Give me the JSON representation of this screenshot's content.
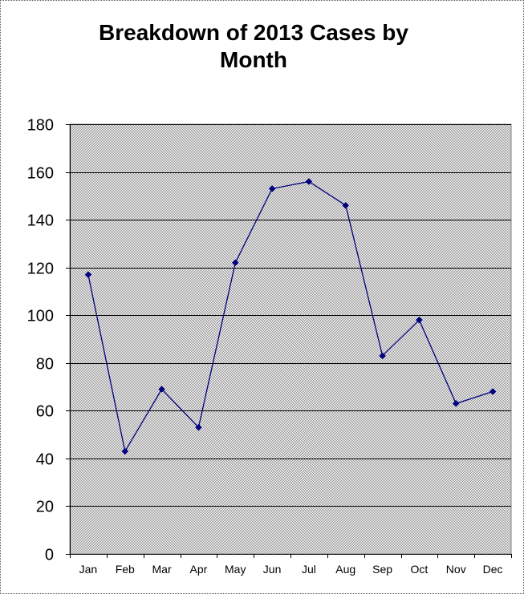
{
  "chart_data": {
    "type": "line",
    "title_lines": [
      "Breakdown of 2013 Cases by",
      "Month"
    ],
    "categories": [
      "Jan",
      "Feb",
      "Mar",
      "Apr",
      "May",
      "Jun",
      "Jul",
      "Aug",
      "Sep",
      "Oct",
      "Nov",
      "Dec"
    ],
    "values": [
      117,
      43,
      69,
      53,
      122,
      153,
      156,
      146,
      83,
      98,
      63,
      68
    ],
    "ylim": [
      0,
      180
    ],
    "yticks": [
      0,
      20,
      40,
      60,
      80,
      100,
      120,
      140,
      160,
      180
    ],
    "grid": true,
    "legend": "none",
    "colors": {
      "line": "#000080",
      "marker": "#000080",
      "plot_background": "#c0c0c0",
      "gridline": "#000000"
    }
  }
}
